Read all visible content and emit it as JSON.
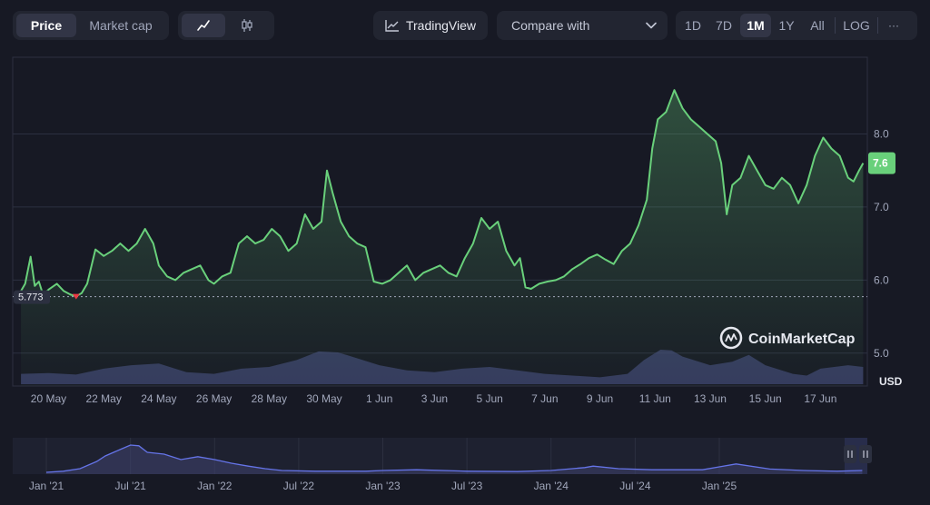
{
  "toolbar": {
    "tabs": [
      "Price",
      "Market cap"
    ],
    "active_tab": "Price",
    "chart_type_icons": [
      "line-chart-icon",
      "candlestick-icon"
    ],
    "tradingview_label": "TradingView",
    "compare_placeholder": "Compare with",
    "ranges": [
      "1D",
      "7D",
      "1M",
      "1Y",
      "All"
    ],
    "active_range": "1M",
    "log_label": "LOG",
    "more_label": "···"
  },
  "colors": {
    "background": "#171924",
    "line": "#69d07b",
    "volume": "#3f4470",
    "navigator_line": "#6574e8",
    "last_price_badge": "#69d07b",
    "start_marker": "#ea3943"
  },
  "watermark": "CoinMarketCap",
  "currency_label": "USD",
  "navigator": {
    "labels": [
      "Jan '21",
      "Jul '21",
      "Jan '22",
      "Jul '22",
      "Jan '23",
      "Jul '23",
      "Jan '24",
      "Jul '24",
      "Jan '25"
    ]
  },
  "chart_data": {
    "type": "line",
    "title": "",
    "currency": "USD",
    "ylim": [
      4.55,
      9.05
    ],
    "y_ticks": [
      5.0,
      6.0,
      7.0,
      8.0
    ],
    "y_tick_labels": [
      "5.0",
      "6.0",
      "7.0",
      "8.0"
    ],
    "x_ticks": [
      {
        "label": "20 May",
        "t": 1.0
      },
      {
        "label": "22 May",
        "t": 3.0
      },
      {
        "label": "24 May",
        "t": 5.0
      },
      {
        "label": "26 May",
        "t": 7.0
      },
      {
        "label": "28 May",
        "t": 9.0
      },
      {
        "label": "30 May",
        "t": 11.0
      },
      {
        "label": "1 Jun",
        "t": 13.0
      },
      {
        "label": "3 Jun",
        "t": 15.0
      },
      {
        "label": "5 Jun",
        "t": 17.0
      },
      {
        "label": "7 Jun",
        "t": 19.0
      },
      {
        "label": "9 Jun",
        "t": 21.0
      },
      {
        "label": "11 Jun",
        "t": 23.0
      },
      {
        "label": "13 Jun",
        "t": 25.0
      },
      {
        "label": "15 Jun",
        "t": 27.0
      },
      {
        "label": "17 Jun",
        "t": 29.0
      }
    ],
    "x_range": [
      -0.3,
      30.7
    ],
    "start_price": 5.773,
    "start_price_label": "5.773",
    "last_price": 7.6,
    "last_price_label": "7.6",
    "price": [
      [
        0.0,
        5.85
      ],
      [
        0.15,
        5.95
      ],
      [
        0.35,
        6.32
      ],
      [
        0.5,
        5.92
      ],
      [
        0.65,
        5.98
      ],
      [
        0.8,
        5.8
      ],
      [
        1.0,
        5.87
      ],
      [
        1.3,
        5.95
      ],
      [
        1.55,
        5.85
      ],
      [
        1.8,
        5.8
      ],
      [
        2.0,
        5.78
      ],
      [
        2.2,
        5.82
      ],
      [
        2.4,
        5.95
      ],
      [
        2.7,
        6.42
      ],
      [
        3.0,
        6.33
      ],
      [
        3.3,
        6.4
      ],
      [
        3.6,
        6.5
      ],
      [
        3.9,
        6.4
      ],
      [
        4.2,
        6.5
      ],
      [
        4.5,
        6.7
      ],
      [
        4.8,
        6.5
      ],
      [
        5.0,
        6.2
      ],
      [
        5.3,
        6.05
      ],
      [
        5.6,
        6.0
      ],
      [
        5.9,
        6.1
      ],
      [
        6.2,
        6.15
      ],
      [
        6.5,
        6.2
      ],
      [
        6.8,
        6.0
      ],
      [
        7.0,
        5.95
      ],
      [
        7.3,
        6.05
      ],
      [
        7.6,
        6.1
      ],
      [
        7.9,
        6.5
      ],
      [
        8.2,
        6.6
      ],
      [
        8.5,
        6.5
      ],
      [
        8.8,
        6.55
      ],
      [
        9.1,
        6.7
      ],
      [
        9.4,
        6.6
      ],
      [
        9.7,
        6.4
      ],
      [
        10.0,
        6.5
      ],
      [
        10.3,
        6.9
      ],
      [
        10.6,
        6.7
      ],
      [
        10.9,
        6.8
      ],
      [
        11.1,
        7.5
      ],
      [
        11.3,
        7.2
      ],
      [
        11.6,
        6.8
      ],
      [
        11.9,
        6.6
      ],
      [
        12.2,
        6.5
      ],
      [
        12.5,
        6.45
      ],
      [
        12.8,
        5.98
      ],
      [
        13.1,
        5.95
      ],
      [
        13.4,
        6.0
      ],
      [
        13.7,
        6.1
      ],
      [
        14.0,
        6.2
      ],
      [
        14.3,
        6.0
      ],
      [
        14.6,
        6.1
      ],
      [
        14.9,
        6.15
      ],
      [
        15.2,
        6.2
      ],
      [
        15.5,
        6.1
      ],
      [
        15.8,
        6.05
      ],
      [
        16.1,
        6.3
      ],
      [
        16.4,
        6.5
      ],
      [
        16.7,
        6.85
      ],
      [
        17.0,
        6.7
      ],
      [
        17.3,
        6.8
      ],
      [
        17.6,
        6.4
      ],
      [
        17.9,
        6.2
      ],
      [
        18.1,
        6.3
      ],
      [
        18.3,
        5.9
      ],
      [
        18.5,
        5.88
      ],
      [
        18.8,
        5.95
      ],
      [
        19.1,
        5.98
      ],
      [
        19.4,
        6.0
      ],
      [
        19.7,
        6.05
      ],
      [
        20.0,
        6.15
      ],
      [
        20.3,
        6.22
      ],
      [
        20.6,
        6.3
      ],
      [
        20.9,
        6.35
      ],
      [
        21.2,
        6.28
      ],
      [
        21.5,
        6.22
      ],
      [
        21.8,
        6.4
      ],
      [
        22.1,
        6.5
      ],
      [
        22.4,
        6.75
      ],
      [
        22.7,
        7.1
      ],
      [
        22.9,
        7.8
      ],
      [
        23.1,
        8.2
      ],
      [
        23.4,
        8.3
      ],
      [
        23.7,
        8.6
      ],
      [
        24.0,
        8.35
      ],
      [
        24.3,
        8.2
      ],
      [
        24.6,
        8.1
      ],
      [
        24.9,
        8.0
      ],
      [
        25.2,
        7.9
      ],
      [
        25.4,
        7.6
      ],
      [
        25.6,
        6.9
      ],
      [
        25.8,
        7.3
      ],
      [
        26.1,
        7.4
      ],
      [
        26.4,
        7.7
      ],
      [
        26.7,
        7.5
      ],
      [
        27.0,
        7.3
      ],
      [
        27.3,
        7.25
      ],
      [
        27.6,
        7.4
      ],
      [
        27.9,
        7.3
      ],
      [
        28.2,
        7.05
      ],
      [
        28.5,
        7.3
      ],
      [
        28.8,
        7.7
      ],
      [
        29.1,
        7.95
      ],
      [
        29.4,
        7.8
      ],
      [
        29.7,
        7.7
      ],
      [
        30.0,
        7.4
      ],
      [
        30.2,
        7.35
      ],
      [
        30.4,
        7.5
      ],
      [
        30.55,
        7.6
      ]
    ],
    "volume_relative": [
      [
        0.0,
        0.3
      ],
      [
        1.0,
        0.32
      ],
      [
        2.0,
        0.28
      ],
      [
        3.0,
        0.45
      ],
      [
        4.0,
        0.55
      ],
      [
        5.0,
        0.6
      ],
      [
        6.0,
        0.35
      ],
      [
        7.0,
        0.3
      ],
      [
        8.0,
        0.45
      ],
      [
        9.0,
        0.5
      ],
      [
        10.0,
        0.7
      ],
      [
        10.8,
        0.95
      ],
      [
        11.5,
        0.92
      ],
      [
        12.0,
        0.8
      ],
      [
        13.0,
        0.55
      ],
      [
        14.0,
        0.4
      ],
      [
        15.0,
        0.35
      ],
      [
        16.0,
        0.45
      ],
      [
        17.0,
        0.5
      ],
      [
        18.0,
        0.4
      ],
      [
        19.0,
        0.3
      ],
      [
        20.0,
        0.25
      ],
      [
        21.0,
        0.2
      ],
      [
        22.0,
        0.3
      ],
      [
        22.6,
        0.7
      ],
      [
        23.2,
        1.0
      ],
      [
        23.6,
        0.98
      ],
      [
        24.0,
        0.8
      ],
      [
        25.0,
        0.55
      ],
      [
        25.8,
        0.65
      ],
      [
        26.4,
        0.85
      ],
      [
        27.0,
        0.55
      ],
      [
        28.0,
        0.3
      ],
      [
        28.5,
        0.25
      ],
      [
        29.0,
        0.45
      ],
      [
        30.0,
        0.55
      ],
      [
        30.55,
        0.5
      ]
    ],
    "navigator_series": [
      [
        2021.0,
        0.05
      ],
      [
        2021.1,
        0.08
      ],
      [
        2021.2,
        0.15
      ],
      [
        2021.3,
        0.35
      ],
      [
        2021.35,
        0.5
      ],
      [
        2021.45,
        0.7
      ],
      [
        2021.5,
        0.8
      ],
      [
        2021.55,
        0.78
      ],
      [
        2021.6,
        0.6
      ],
      [
        2021.7,
        0.55
      ],
      [
        2021.8,
        0.4
      ],
      [
        2021.9,
        0.48
      ],
      [
        2022.0,
        0.4
      ],
      [
        2022.1,
        0.3
      ],
      [
        2022.2,
        0.22
      ],
      [
        2022.3,
        0.15
      ],
      [
        2022.4,
        0.1
      ],
      [
        2022.6,
        0.08
      ],
      [
        2022.9,
        0.08
      ],
      [
        2023.0,
        0.1
      ],
      [
        2023.2,
        0.12
      ],
      [
        2023.5,
        0.08
      ],
      [
        2023.8,
        0.07
      ],
      [
        2024.0,
        0.1
      ],
      [
        2024.2,
        0.18
      ],
      [
        2024.25,
        0.22
      ],
      [
        2024.4,
        0.15
      ],
      [
        2024.6,
        0.12
      ],
      [
        2024.9,
        0.12
      ],
      [
        2025.0,
        0.2
      ],
      [
        2025.1,
        0.28
      ],
      [
        2025.3,
        0.14
      ],
      [
        2025.5,
        0.1
      ],
      [
        2025.7,
        0.08
      ],
      [
        2025.85,
        0.1
      ]
    ],
    "navigator_range": [
      2020.8,
      2025.88
    ]
  }
}
